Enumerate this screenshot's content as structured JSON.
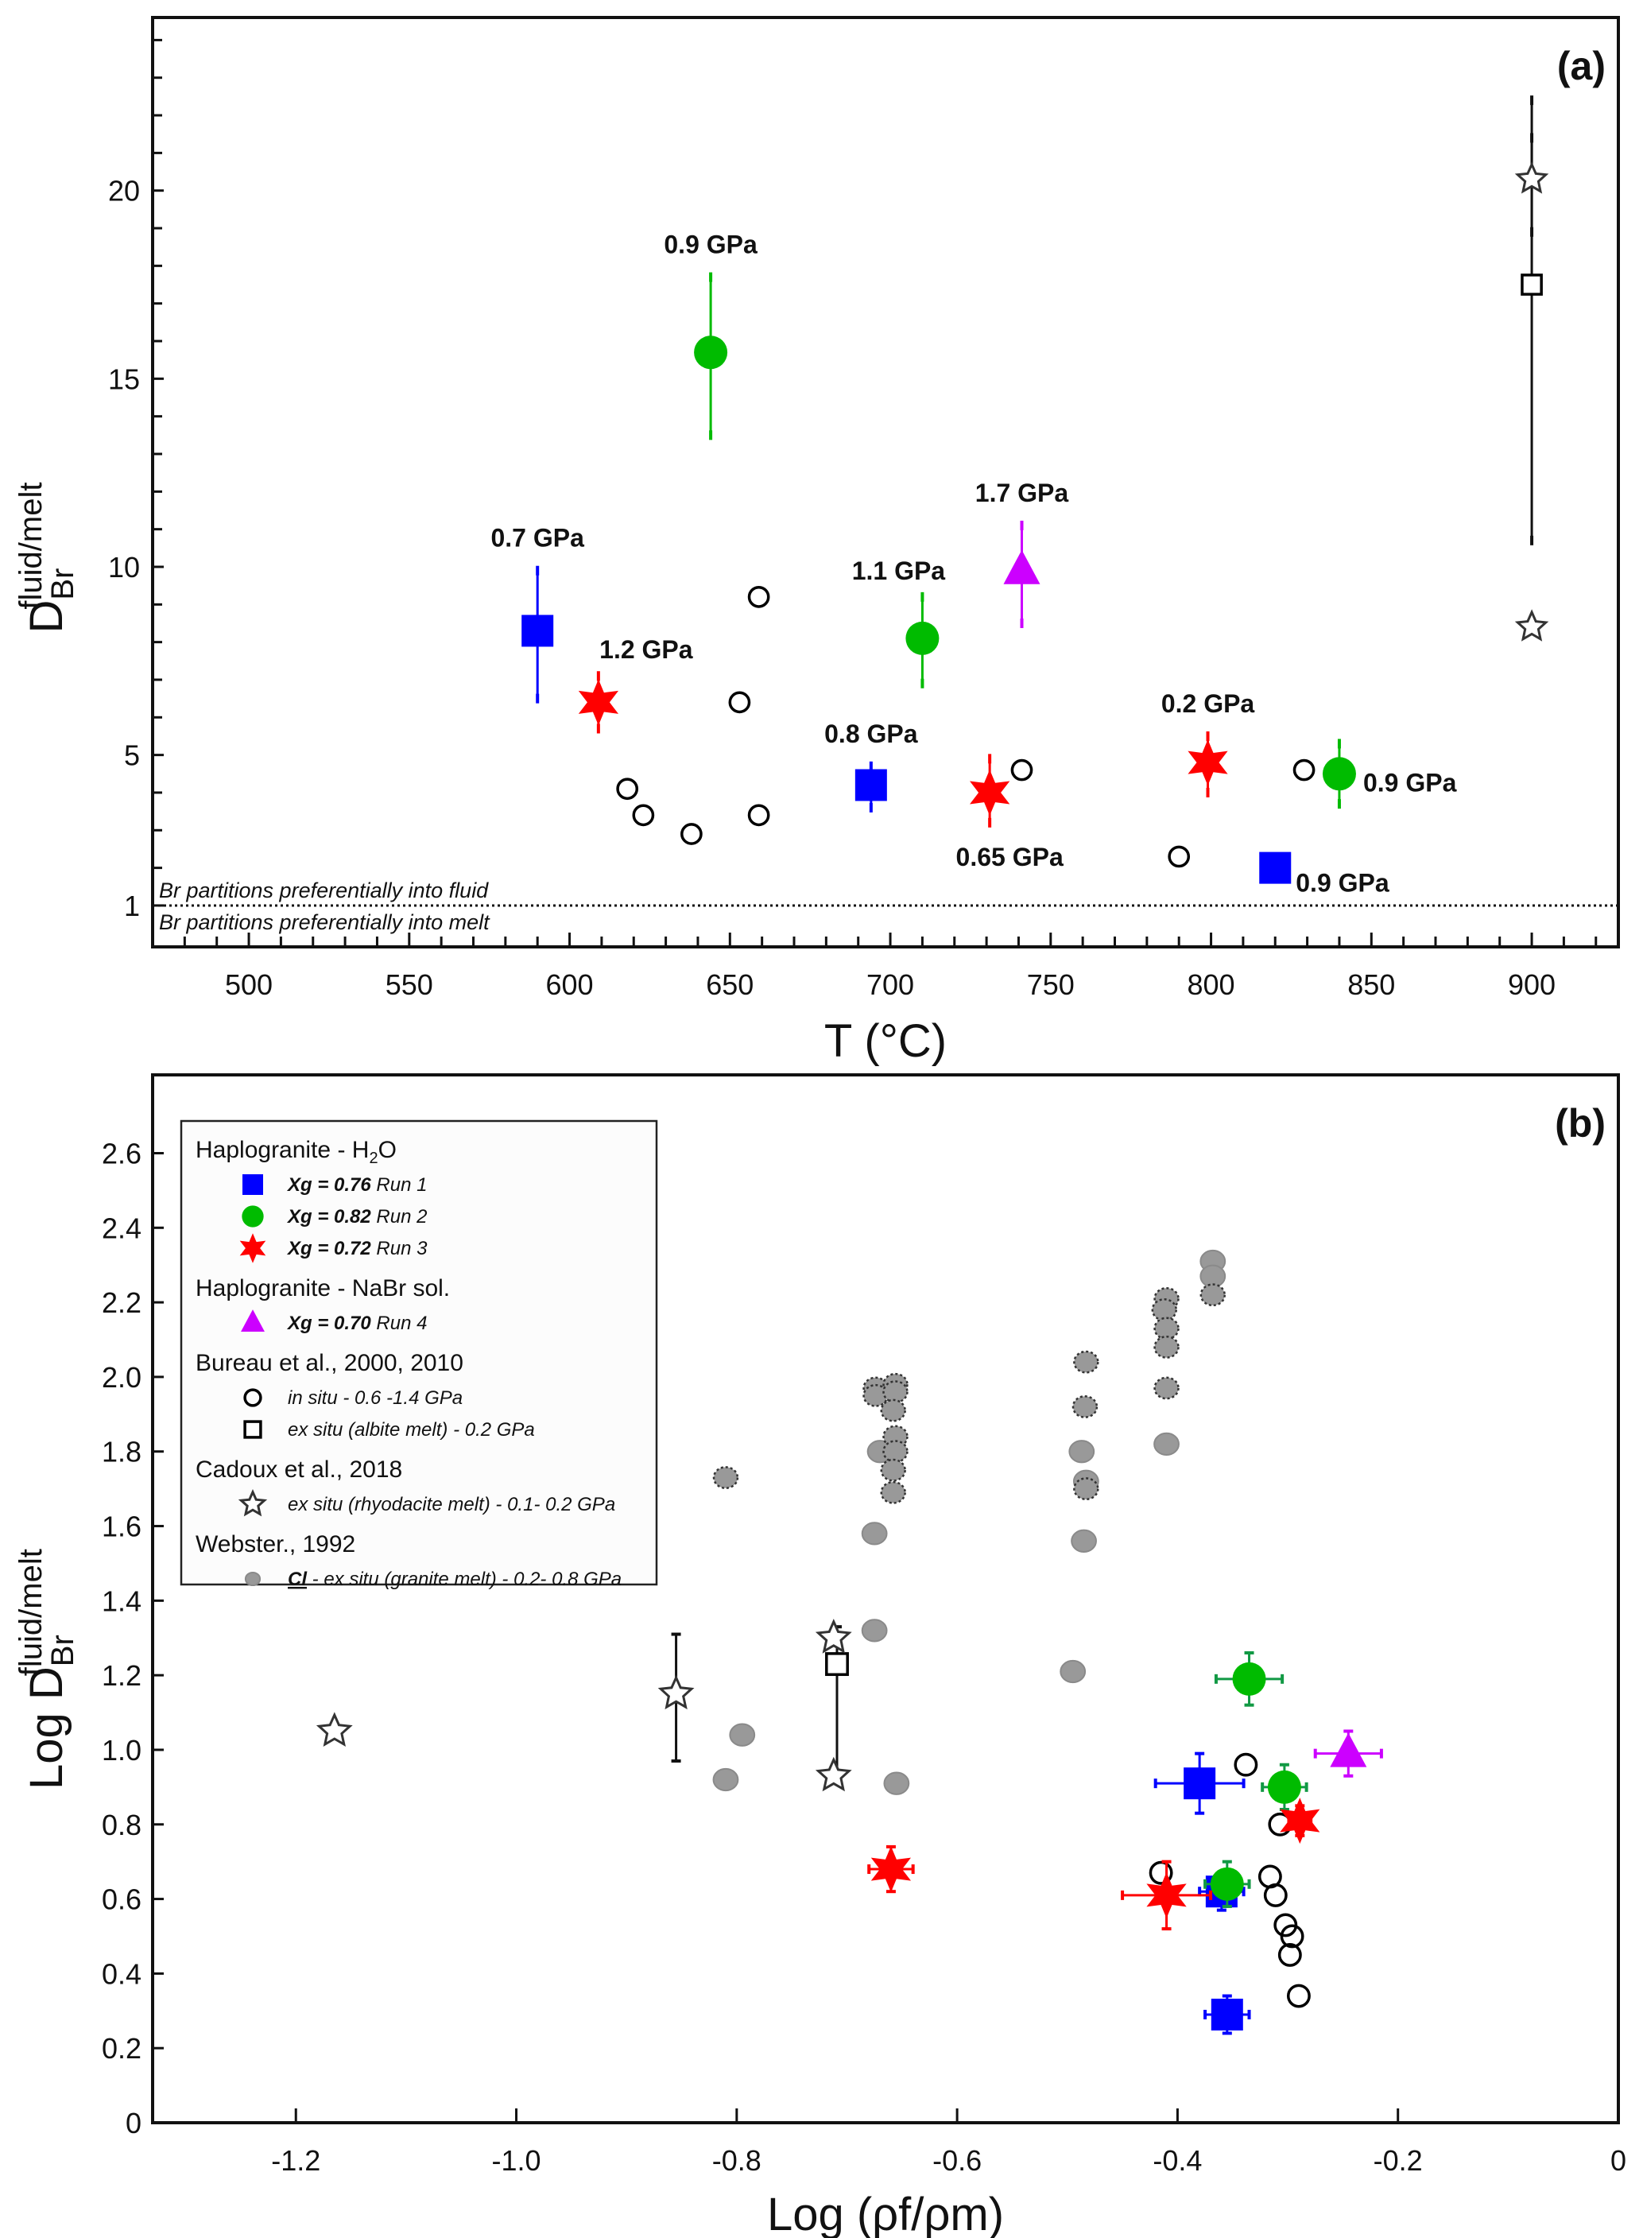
{
  "chart_data": [
    {
      "id": "a",
      "type": "scatter",
      "panel_label": "(a)",
      "xlabel": "T (°C)",
      "ylabel": {
        "main": "D",
        "sub": "Br",
        "sup": "fluid/melt"
      },
      "xlim": [
        470,
        927
      ],
      "ylim": [
        -0.1,
        24.6
      ],
      "xticks": [
        500,
        550,
        600,
        650,
        700,
        750,
        800,
        850,
        900
      ],
      "yticks": [
        1,
        5,
        10,
        15,
        20
      ],
      "reference_line": {
        "y": 1,
        "style": "dotted",
        "above_text": "Br partitions preferentially into fluid",
        "below_text": "Br partitions preferentially into melt"
      },
      "series": [
        {
          "name": "Run 1",
          "marker": "square",
          "color": "#0000ff",
          "points": [
            {
              "x": 590,
              "y": 8.3,
              "yerr_low": 6.5,
              "yerr_high": 9.9,
              "label": "0.7 GPa",
              "label_pos": "above"
            },
            {
              "x": 694,
              "y": 4.2,
              "yerr_low": 3.6,
              "yerr_high": 4.7,
              "label": "0.8 GPa",
              "label_pos": "above"
            },
            {
              "x": 820,
              "y": 2.0,
              "label": "0.9 GPa",
              "label_pos": "right-below"
            }
          ]
        },
        {
          "name": "Run 2",
          "marker": "circle",
          "color": "#00bb00",
          "points": [
            {
              "x": 644,
              "y": 15.7,
              "yerr_low": 13.5,
              "yerr_high": 17.7,
              "label": "0.9 GPa",
              "label_pos": "above"
            },
            {
              "x": 710,
              "y": 8.1,
              "yerr_low": 6.9,
              "yerr_high": 9.2,
              "label": "1.1 GPa",
              "label_pos": "above-left"
            },
            {
              "x": 840,
              "y": 4.5,
              "yerr_low": 3.7,
              "yerr_high": 5.3,
              "label": "0.9 GPa",
              "label_pos": "right"
            }
          ]
        },
        {
          "name": "Run 3",
          "marker": "star",
          "color": "#ff0000",
          "points": [
            {
              "x": 609,
              "y": 6.4,
              "yerr_low": 5.7,
              "yerr_high": 7.1,
              "label": "1.2 GPa",
              "label_pos": "above-right"
            },
            {
              "x": 731,
              "y": 4.0,
              "yerr_low": 3.2,
              "yerr_high": 4.9,
              "label": "0.65 GPa",
              "label_pos": "below"
            },
            {
              "x": 799,
              "y": 4.8,
              "yerr_low": 4.0,
              "yerr_high": 5.5,
              "label": "0.2 GPa",
              "label_pos": "above"
            }
          ]
        },
        {
          "name": "Run 4",
          "marker": "triangle",
          "color": "#cc00ff",
          "points": [
            {
              "x": 741,
              "y": 9.9,
              "yerr_low": 8.5,
              "yerr_high": 11.1,
              "label": "1.7 GPa",
              "label_pos": "above"
            }
          ]
        },
        {
          "name": "Bureau in situ",
          "marker": "open-circle",
          "color": "#000000",
          "points": [
            {
              "x": 618,
              "y": 4.1
            },
            {
              "x": 623,
              "y": 3.4
            },
            {
              "x": 638,
              "y": 2.9
            },
            {
              "x": 653,
              "y": 6.4
            },
            {
              "x": 659,
              "y": 3.4
            },
            {
              "x": 659,
              "y": 9.2
            },
            {
              "x": 741,
              "y": 4.6
            },
            {
              "x": 790,
              "y": 2.3
            },
            {
              "x": 829,
              "y": 4.6
            }
          ]
        },
        {
          "name": "Bureau ex situ",
          "marker": "open-square",
          "color": "#000000",
          "points": [
            {
              "x": 900,
              "y": 17.5,
              "yerr_low": 10.7,
              "yerr_high": 22.4
            }
          ]
        },
        {
          "name": "Cadoux ex situ",
          "marker": "open-star",
          "color": "#000000",
          "points": [
            {
              "x": 900,
              "y": 20.3,
              "yerr_low": 18.9,
              "yerr_high": 21.4
            },
            {
              "x": 900,
              "y": 8.4
            }
          ]
        }
      ]
    },
    {
      "id": "b",
      "type": "scatter",
      "panel_label": "(b)",
      "xlabel": "Log (ρf/ρm)",
      "ylabel": {
        "main": "Log D",
        "sub": "Br",
        "sup": "fluid/melt"
      },
      "xlim": [
        -1.33,
        0
      ],
      "ylim": [
        0,
        2.81
      ],
      "xticks": [
        -1.2,
        -1.0,
        -0.8,
        -0.6,
        -0.4,
        -0.2,
        0
      ],
      "xtick_labels": [
        "-1.2",
        "-1.0",
        "-0.8",
        "-0.6",
        "-0.4",
        "-0.2",
        "0"
      ],
      "yticks": [
        0,
        0.2,
        0.4,
        0.6,
        0.8,
        1.0,
        1.2,
        1.4,
        1.6,
        1.8,
        2.0,
        2.2,
        2.4,
        2.6
      ],
      "ytick_labels": [
        "0",
        "0.2",
        "0.4",
        "0.6",
        "0.8",
        "1.0",
        "1.2",
        "1.4",
        "1.6",
        "1.8",
        "2.0",
        "2.2",
        "2.4",
        "2.6"
      ],
      "series": [
        {
          "name": "Run 1",
          "marker": "square",
          "color": "#0000ff",
          "points": [
            {
              "x": -0.38,
              "y": 0.91,
              "xerr": 0.04,
              "yerr": 0.08
            },
            {
              "x": -0.36,
              "y": 0.62,
              "xerr": 0.02,
              "yerr": 0.05
            },
            {
              "x": -0.355,
              "y": 0.29,
              "xerr": 0.02,
              "yerr": 0.05
            }
          ]
        },
        {
          "name": "Run 2",
          "marker": "circle",
          "color": "#00bb00",
          "points": [
            {
              "x": -0.335,
              "y": 1.19,
              "xerr": 0.03,
              "yerr": 0.07
            },
            {
              "x": -0.303,
              "y": 0.9,
              "xerr": 0.02,
              "yerr": 0.06
            },
            {
              "x": -0.355,
              "y": 0.64,
              "xerr": 0.02,
              "yerr": 0.06
            }
          ]
        },
        {
          "name": "Run 3",
          "marker": "star",
          "color": "#ff0000",
          "points": [
            {
              "x": -0.66,
              "y": 0.68,
              "xerr": 0.02,
              "yerr": 0.06
            },
            {
              "x": -0.41,
              "y": 0.61,
              "xerr": 0.04,
              "yerr": 0.09
            },
            {
              "x": -0.289,
              "y": 0.81,
              "xerr": 0.01,
              "yerr": 0.04
            }
          ]
        },
        {
          "name": "Run 4",
          "marker": "triangle",
          "color": "#cc00ff",
          "points": [
            {
              "x": -0.245,
              "y": 0.99,
              "xerr": 0.03,
              "yerr": 0.06
            }
          ]
        },
        {
          "name": "Bureau in situ",
          "marker": "open-circle",
          "color": "#000000",
          "points": [
            {
              "x": -0.415,
              "y": 0.67
            },
            {
              "x": -0.338,
              "y": 0.96
            },
            {
              "x": -0.307,
              "y": 0.8
            },
            {
              "x": -0.316,
              "y": 0.66
            },
            {
              "x": -0.311,
              "y": 0.61
            },
            {
              "x": -0.302,
              "y": 0.53
            },
            {
              "x": -0.296,
              "y": 0.5
            },
            {
              "x": -0.298,
              "y": 0.45
            },
            {
              "x": -0.29,
              "y": 0.34
            }
          ]
        },
        {
          "name": "Bureau ex situ",
          "marker": "open-square",
          "color": "#000000",
          "points": [
            {
              "x": -0.709,
              "y": 1.23,
              "yerr_low": 0.93,
              "yerr_high": 1.33
            }
          ]
        },
        {
          "name": "Cadoux ex situ",
          "marker": "open-star",
          "color": "#000000",
          "points": [
            {
              "x": -1.165,
              "y": 1.05
            },
            {
              "x": -0.855,
              "y": 1.15,
              "yerr_low": 0.97,
              "yerr_high": 1.31
            },
            {
              "x": -0.712,
              "y": 1.3
            },
            {
              "x": -0.712,
              "y": 0.93
            }
          ]
        },
        {
          "name": "Webster Cl",
          "marker": "gray-circle",
          "color": "#999999",
          "points": [
            {
              "x": -0.81,
              "y": 0.92
            },
            {
              "x": -0.795,
              "y": 1.04
            },
            {
              "x": -0.655,
              "y": 0.91
            },
            {
              "x": -0.675,
              "y": 1.32
            },
            {
              "x": -0.675,
              "y": 1.58
            },
            {
              "x": -0.67,
              "y": 1.8
            },
            {
              "x": -0.495,
              "y": 1.21
            },
            {
              "x": -0.487,
              "y": 1.8
            },
            {
              "x": -0.485,
              "y": 1.56
            },
            {
              "x": -0.483,
              "y": 1.72
            },
            {
              "x": -0.41,
              "y": 1.82
            },
            {
              "x": -0.368,
              "y": 2.31
            },
            {
              "x": -0.368,
              "y": 2.27
            }
          ]
        },
        {
          "name": "Webster Cl (dotted)",
          "marker": "gray-dotted-circle",
          "color": "#999999",
          "points": [
            {
              "x": -0.81,
              "y": 1.73
            },
            {
              "x": -0.674,
              "y": 1.97
            },
            {
              "x": -0.674,
              "y": 1.95
            },
            {
              "x": -0.656,
              "y": 1.98
            },
            {
              "x": -0.656,
              "y": 1.96
            },
            {
              "x": -0.658,
              "y": 1.91
            },
            {
              "x": -0.656,
              "y": 1.84
            },
            {
              "x": -0.656,
              "y": 1.8
            },
            {
              "x": -0.658,
              "y": 1.75
            },
            {
              "x": -0.658,
              "y": 1.69
            },
            {
              "x": -0.483,
              "y": 2.04
            },
            {
              "x": -0.484,
              "y": 1.92
            },
            {
              "x": -0.483,
              "y": 1.7
            },
            {
              "x": -0.41,
              "y": 2.21
            },
            {
              "x": -0.412,
              "y": 2.18
            },
            {
              "x": -0.41,
              "y": 2.13
            },
            {
              "x": -0.41,
              "y": 2.08
            },
            {
              "x": -0.41,
              "y": 1.97
            },
            {
              "x": -0.368,
              "y": 2.22
            }
          ]
        }
      ],
      "legend": {
        "placement": "top-left",
        "groups": [
          {
            "title": "Haplogranite - H",
            "title_sub": "2",
            "title_tail": "O",
            "entries": [
              {
                "marker": "square",
                "color": "#0000ff",
                "bold": "Xg = 0.76",
                "italic": "Run 1"
              },
              {
                "marker": "circle",
                "color": "#00bb00",
                "bold": "Xg = 0.82",
                "italic": "Run 2"
              },
              {
                "marker": "star",
                "color": "#ff0000",
                "bold": "Xg = 0.72",
                "italic": "Run 3"
              }
            ]
          },
          {
            "title": "Haplogranite - NaBr sol.",
            "entries": [
              {
                "marker": "triangle",
                "color": "#cc00ff",
                "bold": "Xg = 0.70",
                "italic": "Run 4"
              }
            ]
          },
          {
            "title": "Bureau et al., 2000, 2010",
            "entries": [
              {
                "marker": "open-circle",
                "color": "#000000",
                "italic": "in situ - 0.6 -1.4 GPa"
              },
              {
                "marker": "open-square",
                "color": "#000000",
                "italic": "ex situ (albite melt) - 0.2 GPa"
              }
            ]
          },
          {
            "title": "Cadoux et al., 2018",
            "entries": [
              {
                "marker": "open-star",
                "color": "#000000",
                "italic": "ex situ (rhyodacite melt) - 0.1- 0.2 GPa"
              }
            ]
          },
          {
            "title": "Webster., 1992",
            "entries": [
              {
                "marker": "gray-circle",
                "color": "#999999",
                "underline_bold": "Cl",
                "italic": " - ex situ (granite melt) - 0.2- 0.8 GPa"
              }
            ]
          }
        ]
      }
    }
  ]
}
